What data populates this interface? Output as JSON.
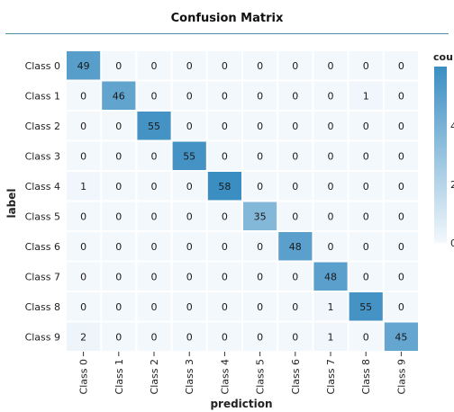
{
  "chart_data": {
    "type": "heatmap",
    "title": "Confusion Matrix",
    "xlabel": "prediction",
    "ylabel": "label",
    "legend_title": "cou",
    "legend_ticks": [
      "4",
      "2",
      "0"
    ],
    "legend_placement": "right",
    "row_labels": [
      "Class 0",
      "Class 1",
      "Class 2",
      "Class 3",
      "Class 4",
      "Class 5",
      "Class 6",
      "Class 7",
      "Class 8",
      "Class 9"
    ],
    "col_labels": [
      "Class 0",
      "Class 1",
      "Class 2",
      "Class 3",
      "Class 4",
      "Class 5",
      "Class 6",
      "Class 7",
      "Class 8",
      "Class 9"
    ],
    "values": [
      [
        49,
        0,
        0,
        0,
        0,
        0,
        0,
        0,
        0,
        0
      ],
      [
        0,
        46,
        0,
        0,
        0,
        0,
        0,
        0,
        1,
        0
      ],
      [
        0,
        0,
        55,
        0,
        0,
        0,
        0,
        0,
        0,
        0
      ],
      [
        0,
        0,
        0,
        55,
        0,
        0,
        0,
        0,
        0,
        0
      ],
      [
        1,
        0,
        0,
        0,
        58,
        0,
        0,
        0,
        0,
        0
      ],
      [
        0,
        0,
        0,
        0,
        0,
        35,
        0,
        0,
        0,
        0
      ],
      [
        0,
        0,
        0,
        0,
        0,
        0,
        48,
        0,
        0,
        0
      ],
      [
        0,
        0,
        0,
        0,
        0,
        0,
        0,
        48,
        0,
        0
      ],
      [
        0,
        0,
        0,
        0,
        0,
        0,
        0,
        1,
        55,
        0
      ],
      [
        2,
        0,
        0,
        0,
        0,
        0,
        0,
        1,
        0,
        45
      ]
    ],
    "color_scale": {
      "low": "#f3f8fc",
      "high": "#3b8ec2"
    }
  }
}
